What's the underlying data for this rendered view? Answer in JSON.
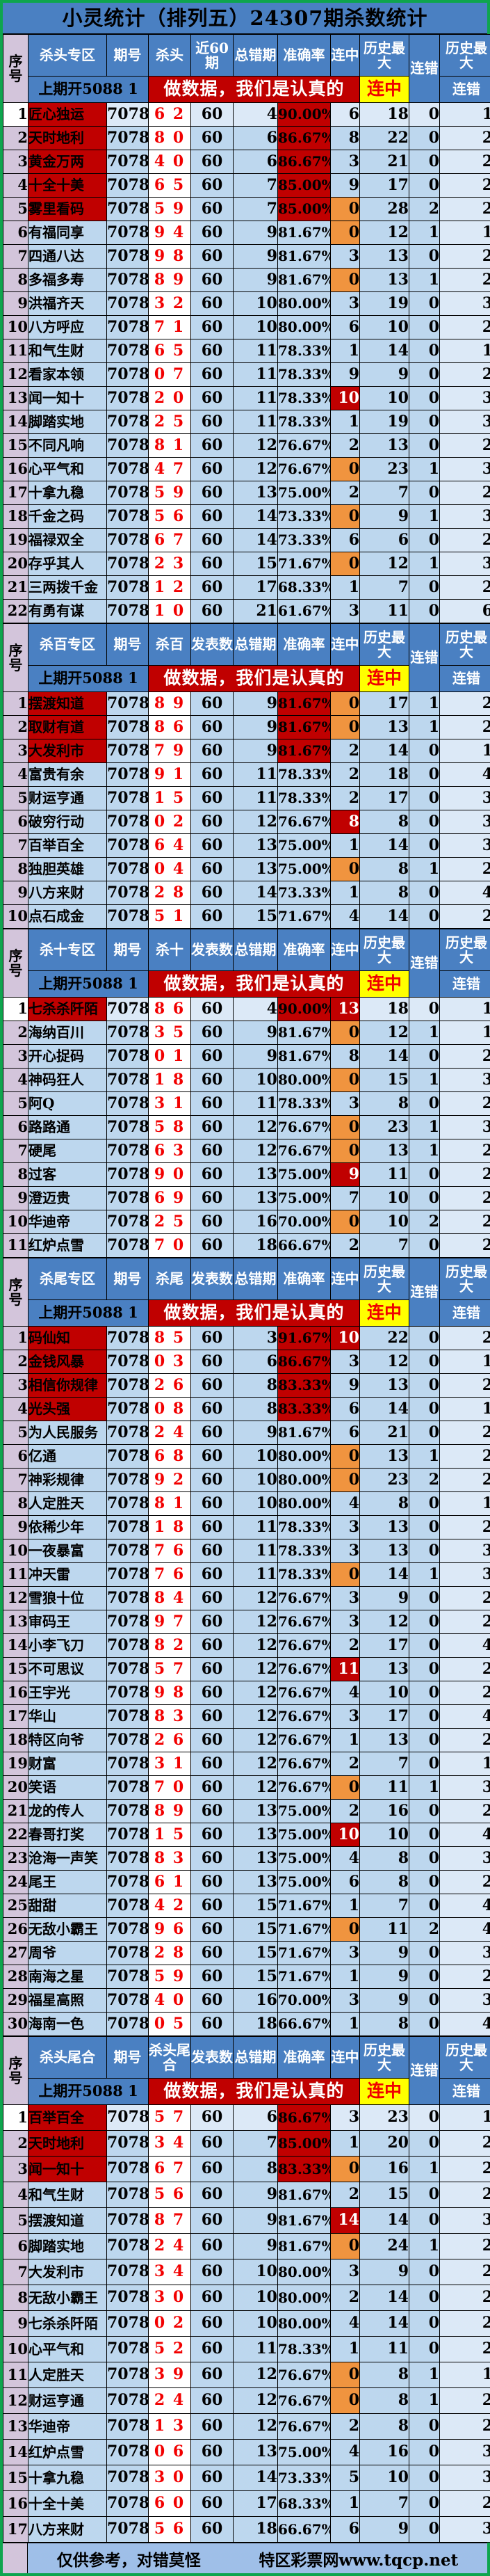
{
  "title": "小灵统计（排列五）24307期杀数统计",
  "shared": {
    "seq_label": "序号",
    "issue_label": "期号",
    "err_label": "总错期",
    "acc_label": "准确率",
    "streak_label": "连中",
    "history_max_label": "历史最大",
    "miss_label": "连错",
    "prev_draw": "上期开5088 1",
    "banner": "做数据，我们是认真的",
    "yellow_streak": "连中",
    "sub_miss": "连错",
    "issue_value": "7078",
    "published_value": "60"
  },
  "colors": {
    "frame_green": "#0EA54E",
    "header_blue": "#4A80C2",
    "cell_blue": "#BDD7EE",
    "cell_blue_light": "#DCE9F7",
    "seq_thistle": "#D3C5DB",
    "hot_red": "#C00000",
    "streak_orange": "#F0943F",
    "yellow": "#FFFF00",
    "kill_text_red": "#F20000",
    "footer_blue": "#9FBFE8"
  },
  "footer": {
    "left": "仅供参考，对错莫怪",
    "right": "特区彩票网www.tqcp.net"
  },
  "sections": [
    {
      "id": "kill-head",
      "zone_label": "杀头专区",
      "kill_label": "杀头",
      "published_label": "近60期",
      "first_light": true,
      "rows": [
        [
          1,
          "匠心独运",
          "6 2",
          4,
          "90.00%",
          6,
          18,
          0,
          1,
          "h"
        ],
        [
          2,
          "天时地利",
          "8 0",
          6,
          "86.67%",
          8,
          22,
          0,
          2,
          "h"
        ],
        [
          3,
          "黄金万两",
          "4 0",
          6,
          "86.67%",
          3,
          21,
          0,
          2,
          "h"
        ],
        [
          4,
          "十全十美",
          "6 5",
          7,
          "85.00%",
          9,
          17,
          0,
          2,
          "h"
        ],
        [
          5,
          "雾里看码",
          "5 9",
          7,
          "85.00%",
          0,
          28,
          2,
          2,
          "ho"
        ],
        [
          6,
          "有福同享",
          "9 4",
          9,
          "81.67%",
          0,
          12,
          1,
          1,
          "o"
        ],
        [
          7,
          "四通八达",
          "9 8",
          9,
          "81.67%",
          3,
          13,
          0,
          2,
          ""
        ],
        [
          8,
          "多福多寿",
          "8 9",
          9,
          "81.67%",
          0,
          13,
          1,
          2,
          "o"
        ],
        [
          9,
          "洪福齐天",
          "3 2",
          10,
          "80.00%",
          3,
          19,
          0,
          3,
          ""
        ],
        [
          10,
          "八方呼应",
          "7 1",
          10,
          "80.00%",
          6,
          10,
          0,
          2,
          ""
        ],
        [
          11,
          "和气生财",
          "6 5",
          11,
          "78.33%",
          1,
          14,
          0,
          1,
          ""
        ],
        [
          12,
          "看家本领",
          "0 7",
          11,
          "78.33%",
          9,
          9,
          0,
          2,
          ""
        ],
        [
          13,
          "闻一知十",
          "2 0",
          11,
          "78.33%",
          10,
          10,
          0,
          3,
          "r"
        ],
        [
          14,
          "脚踏实地",
          "2 5",
          11,
          "78.33%",
          1,
          19,
          0,
          3,
          ""
        ],
        [
          15,
          "不同凡响",
          "8 1",
          12,
          "76.67%",
          2,
          13,
          0,
          2,
          ""
        ],
        [
          16,
          "心平气和",
          "4 7",
          12,
          "76.67%",
          0,
          23,
          1,
          3,
          "o"
        ],
        [
          17,
          "十拿九稳",
          "5 9",
          13,
          "75.00%",
          2,
          7,
          0,
          2,
          ""
        ],
        [
          18,
          "千金之码",
          "5 6",
          14,
          "73.33%",
          0,
          9,
          1,
          3,
          "o"
        ],
        [
          19,
          "福禄双全",
          "6 7",
          14,
          "73.33%",
          6,
          6,
          0,
          2,
          ""
        ],
        [
          20,
          "存乎其人",
          "2 3",
          15,
          "71.67%",
          0,
          12,
          1,
          3,
          "o"
        ],
        [
          21,
          "三两拨千金",
          "1 2",
          17,
          "68.33%",
          1,
          7,
          0,
          2,
          ""
        ],
        [
          22,
          "有勇有谋",
          "1 0",
          21,
          "61.67%",
          3,
          11,
          0,
          6,
          ""
        ]
      ]
    },
    {
      "id": "kill-hundred",
      "zone_label": "杀百专区",
      "kill_label": "杀百",
      "published_label": "发表数",
      "first_light": false,
      "rows": [
        [
          1,
          "摆渡知道",
          "8 9",
          9,
          "81.67%",
          0,
          17,
          1,
          2,
          "ho"
        ],
        [
          2,
          "取财有道",
          "8 6",
          9,
          "81.67%",
          0,
          13,
          1,
          2,
          "ho"
        ],
        [
          3,
          "大发利市",
          "7 9",
          9,
          "81.67%",
          2,
          14,
          0,
          1,
          "h"
        ],
        [
          4,
          "富贵有余",
          "9 1",
          11,
          "78.33%",
          2,
          18,
          0,
          4,
          ""
        ],
        [
          5,
          "财运亨通",
          "1 5",
          11,
          "78.33%",
          2,
          17,
          0,
          3,
          ""
        ],
        [
          6,
          "破穷行动",
          "0 2",
          12,
          "76.67%",
          8,
          8,
          0,
          3,
          "r"
        ],
        [
          7,
          "百举百全",
          "6 4",
          13,
          "75.00%",
          1,
          14,
          0,
          3,
          ""
        ],
        [
          8,
          "独胆英雄",
          "0 4",
          13,
          "75.00%",
          0,
          8,
          1,
          2,
          "o"
        ],
        [
          9,
          "八方来财",
          "2 8",
          14,
          "73.33%",
          1,
          8,
          0,
          4,
          ""
        ],
        [
          10,
          "点石成金",
          "5 1",
          15,
          "71.67%",
          4,
          14,
          0,
          2,
          ""
        ]
      ]
    },
    {
      "id": "kill-ten",
      "zone_label": "杀十专区",
      "kill_label": "杀十",
      "published_label": "发表数",
      "first_light": true,
      "rows": [
        [
          1,
          "七杀杀阡陌",
          "8 6",
          4,
          "90.00%",
          13,
          18,
          0,
          1,
          "hr"
        ],
        [
          2,
          "海纳百川",
          "3 5",
          9,
          "81.67%",
          0,
          12,
          1,
          1,
          "o"
        ],
        [
          3,
          "开心捉码",
          "0 1",
          9,
          "81.67%",
          8,
          14,
          0,
          2,
          ""
        ],
        [
          4,
          "神码狂人",
          "1 8",
          10,
          "80.00%",
          0,
          15,
          1,
          3,
          "o"
        ],
        [
          5,
          "阿Q",
          "3 1",
          11,
          "78.33%",
          3,
          8,
          0,
          2,
          ""
        ],
        [
          6,
          "路路通",
          "5 8",
          12,
          "76.67%",
          0,
          23,
          1,
          3,
          "o"
        ],
        [
          7,
          "硬尾",
          "6 3",
          12,
          "76.67%",
          0,
          13,
          1,
          2,
          "o"
        ],
        [
          8,
          "过客",
          "9 0",
          13,
          "75.00%",
          9,
          11,
          0,
          2,
          "r"
        ],
        [
          9,
          "澄迈贵",
          "6 9",
          13,
          "75.00%",
          7,
          10,
          0,
          2,
          ""
        ],
        [
          10,
          "华迪帝",
          "2 5",
          16,
          "70.00%",
          0,
          10,
          2,
          2,
          "o"
        ],
        [
          11,
          "红炉点雪",
          "7 0",
          18,
          "66.67%",
          2,
          7,
          0,
          2,
          ""
        ]
      ]
    },
    {
      "id": "kill-tail",
      "zone_label": "杀尾专区",
      "kill_label": "杀尾",
      "published_label": "发表数",
      "first_light": false,
      "rows": [
        [
          1,
          "码仙知",
          "8 5",
          3,
          "91.67%",
          10,
          22,
          0,
          2,
          "hr"
        ],
        [
          2,
          "金钱风暴",
          "0 3",
          6,
          "86.67%",
          3,
          12,
          0,
          1,
          "h"
        ],
        [
          3,
          "相信你规律",
          "2 6",
          8,
          "83.33%",
          9,
          13,
          0,
          2,
          "h"
        ],
        [
          4,
          "光头强",
          "0 8",
          8,
          "83.33%",
          6,
          14,
          0,
          1,
          "h"
        ],
        [
          5,
          "为人民服务",
          "2 4",
          9,
          "81.67%",
          6,
          21,
          0,
          2,
          ""
        ],
        [
          6,
          "亿通",
          "6 8",
          10,
          "80.00%",
          0,
          13,
          1,
          2,
          "o"
        ],
        [
          7,
          "神彩规律",
          "9 2",
          10,
          "80.00%",
          0,
          23,
          2,
          2,
          "o"
        ],
        [
          8,
          "人定胜天",
          "8 1",
          10,
          "80.00%",
          4,
          8,
          0,
          1,
          ""
        ],
        [
          9,
          "依稀少年",
          "1 8",
          11,
          "78.33%",
          3,
          13,
          0,
          2,
          ""
        ],
        [
          10,
          "一夜暴富",
          "7 6",
          11,
          "78.33%",
          3,
          13,
          0,
          3,
          ""
        ],
        [
          11,
          "冲天雷",
          "7 6",
          11,
          "78.33%",
          0,
          14,
          1,
          3,
          "o"
        ],
        [
          12,
          "雪狼十位",
          "8 4",
          12,
          "76.67%",
          3,
          9,
          0,
          2,
          ""
        ],
        [
          13,
          "审码王",
          "9 7",
          12,
          "76.67%",
          3,
          12,
          0,
          2,
          ""
        ],
        [
          14,
          "小李飞刀",
          "8 2",
          12,
          "76.67%",
          2,
          17,
          0,
          4,
          ""
        ],
        [
          15,
          "不可思议",
          "5 7",
          12,
          "76.67%",
          11,
          13,
          0,
          2,
          "r"
        ],
        [
          16,
          "王宇光",
          "9 8",
          12,
          "76.67%",
          4,
          10,
          0,
          2,
          ""
        ],
        [
          17,
          "华山",
          "8 3",
          12,
          "76.67%",
          3,
          17,
          0,
          4,
          ""
        ],
        [
          18,
          "特区向爷",
          "2 6",
          12,
          "76.67%",
          1,
          13,
          0,
          2,
          ""
        ],
        [
          19,
          "财富",
          "3 1",
          12,
          "76.67%",
          2,
          7,
          0,
          1,
          ""
        ],
        [
          20,
          "笑语",
          "7 0",
          12,
          "76.67%",
          0,
          11,
          1,
          3,
          "o"
        ],
        [
          21,
          "龙的传人",
          "8 9",
          13,
          "75.00%",
          2,
          16,
          0,
          2,
          ""
        ],
        [
          22,
          "春哥打奖",
          "1 5",
          13,
          "75.00%",
          10,
          10,
          0,
          4,
          "r"
        ],
        [
          23,
          "沧海一声笑",
          "8 3",
          13,
          "75.00%",
          4,
          8,
          0,
          3,
          ""
        ],
        [
          24,
          "尾王",
          "6 1",
          13,
          "75.00%",
          6,
          8,
          0,
          2,
          ""
        ],
        [
          25,
          "甜甜",
          "4 2",
          15,
          "71.67%",
          1,
          7,
          0,
          4,
          ""
        ],
        [
          26,
          "无敌小霸王",
          "9 6",
          15,
          "71.67%",
          0,
          11,
          2,
          4,
          "o"
        ],
        [
          27,
          "周爷",
          "2 8",
          15,
          "71.67%",
          3,
          9,
          0,
          3,
          ""
        ],
        [
          28,
          "南海之星",
          "5 9",
          15,
          "71.67%",
          1,
          9,
          0,
          2,
          ""
        ],
        [
          29,
          "福星高照",
          "4 0",
          16,
          "70.00%",
          3,
          9,
          0,
          3,
          ""
        ],
        [
          30,
          "海南一色",
          "0 5",
          18,
          "66.67%",
          1,
          8,
          0,
          4,
          ""
        ]
      ]
    },
    {
      "id": "kill-head-tail-sum",
      "zone_label": "杀头尾合",
      "kill_label": "杀头尾合",
      "published_label": "发表数",
      "first_light": true,
      "rows": [
        [
          1,
          "百举百全",
          "5 7",
          6,
          "86.67%",
          3,
          23,
          0,
          1,
          "h"
        ],
        [
          2,
          "天时地利",
          "3 4",
          7,
          "85.00%",
          1,
          20,
          0,
          2,
          "h"
        ],
        [
          3,
          "闻一知十",
          "6 7",
          8,
          "83.33%",
          0,
          16,
          1,
          2,
          "ho"
        ],
        [
          4,
          "和气生财",
          "5 6",
          9,
          "81.67%",
          2,
          15,
          0,
          2,
          ""
        ],
        [
          5,
          "摆渡知道",
          "8 7",
          9,
          "81.67%",
          14,
          14,
          0,
          3,
          "r"
        ],
        [
          6,
          "脚踏实地",
          "2 4",
          9,
          "81.67%",
          0,
          24,
          1,
          2,
          "o"
        ],
        [
          7,
          "大发利市",
          "3 4",
          10,
          "80.00%",
          3,
          9,
          0,
          2,
          ""
        ],
        [
          8,
          "无敌小霸王",
          "3 0",
          10,
          "80.00%",
          2,
          14,
          0,
          2,
          ""
        ],
        [
          9,
          "七杀杀阡陌",
          "0 2",
          10,
          "80.00%",
          4,
          14,
          0,
          2,
          ""
        ],
        [
          10,
          "心平气和",
          "5 2",
          11,
          "78.33%",
          1,
          11,
          0,
          2,
          ""
        ],
        [
          11,
          "人定胜天",
          "3 9",
          12,
          "76.67%",
          0,
          8,
          1,
          1,
          "o"
        ],
        [
          12,
          "财运亨通",
          "2 4",
          12,
          "76.67%",
          0,
          8,
          1,
          2,
          "o"
        ],
        [
          13,
          "华迪帝",
          "1 3",
          12,
          "76.67%",
          2,
          8,
          0,
          2,
          ""
        ],
        [
          14,
          "红炉点雪",
          "0 6",
          13,
          "75.00%",
          4,
          16,
          0,
          3,
          ""
        ],
        [
          15,
          "十拿九稳",
          "3 0",
          14,
          "73.33%",
          5,
          10,
          0,
          3,
          ""
        ],
        [
          16,
          "十全十美",
          "6 0",
          17,
          "68.33%",
          1,
          7,
          0,
          2,
          ""
        ],
        [
          17,
          "八方来财",
          "5 6",
          18,
          "66.67%",
          6,
          9,
          0,
          3,
          ""
        ]
      ]
    }
  ]
}
